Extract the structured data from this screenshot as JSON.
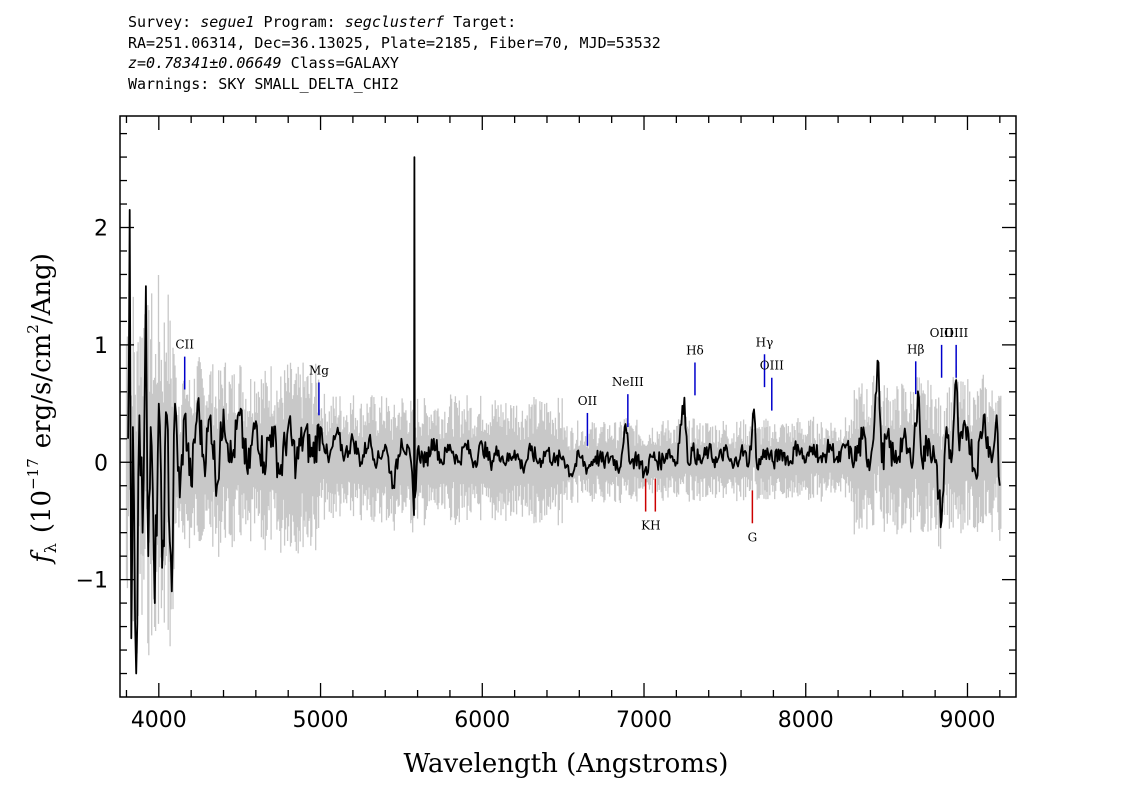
{
  "header": {
    "survey_label": "Survey:",
    "survey": "segue1",
    "program_label": "Program:",
    "program": "segclusterf",
    "target_label": "Target:",
    "line2": "RA=251.06314, Dec=36.13025, Plate=2185, Fiber=70, MJD=53532",
    "redshift": "z=0.78341±0.06649",
    "class_text": "Class=GALAXY",
    "warnings": "Warnings: SKY SMALL_DELTA_CHI2"
  },
  "chart_data": {
    "type": "line",
    "xlabel": "Wavelength (Angstroms)",
    "ylabel_symbol": "f",
    "ylabel_sub": "λ",
    "ylabel_rest": "(10",
    "ylabel_exp": "−17",
    "ylabel_units": "erg/s/cm",
    "ylabel_exp2": "2",
    "ylabel_end": "/Ang)",
    "xlim": [
      3760,
      9300
    ],
    "ylim": [
      -2.0,
      2.95
    ],
    "x_ticks": [
      {
        "value": 4000,
        "label": "4000"
      },
      {
        "value": 5000,
        "label": "5000"
      },
      {
        "value": 6000,
        "label": "6000"
      },
      {
        "value": 7000,
        "label": "7000"
      },
      {
        "value": 8000,
        "label": "8000"
      },
      {
        "value": 9000,
        "label": "9000"
      }
    ],
    "y_ticks": [
      {
        "value": -1,
        "label": "−1"
      },
      {
        "value": 0,
        "label": "0"
      },
      {
        "value": 1,
        "label": "1"
      },
      {
        "value": 2,
        "label": "2"
      }
    ],
    "spectrum_color": "#000000",
    "noise_color": "#c8c8c8",
    "spectrum_points": [
      [
        3810,
        0.2
      ],
      [
        3820,
        2.15
      ],
      [
        3830,
        -1.5
      ],
      [
        3840,
        0.3
      ],
      [
        3860,
        -1.8
      ],
      [
        3880,
        0.4
      ],
      [
        3900,
        -0.6
      ],
      [
        3920,
        1.5
      ],
      [
        3935,
        -0.8
      ],
      [
        3950,
        0.3
      ],
      [
        3975,
        -1.2
      ],
      [
        4000,
        0.5
      ],
      [
        4020,
        -0.9
      ],
      [
        4050,
        0.4
      ],
      [
        4080,
        -1.1
      ],
      [
        4100,
        0.5
      ],
      [
        4130,
        -0.3
      ],
      [
        4160,
        0.4
      ],
      [
        4200,
        -0.2
      ],
      [
        4240,
        0.5
      ],
      [
        4280,
        0.0
      ],
      [
        4320,
        0.4
      ],
      [
        4360,
        -0.2
      ],
      [
        4400,
        0.45
      ],
      [
        4450,
        0.0
      ],
      [
        4500,
        0.4
      ],
      [
        4550,
        -0.1
      ],
      [
        4600,
        0.35
      ],
      [
        4650,
        0.0
      ],
      [
        4700,
        0.3
      ],
      [
        4750,
        -0.1
      ],
      [
        4800,
        0.3
      ],
      [
        4850,
        0.0
      ],
      [
        4900,
        0.25
      ],
      [
        4950,
        0.05
      ],
      [
        5000,
        0.3
      ],
      [
        5050,
        0.0
      ],
      [
        5100,
        0.25
      ],
      [
        5150,
        0.05
      ],
      [
        5200,
        0.2
      ],
      [
        5250,
        0.0
      ],
      [
        5300,
        0.2
      ],
      [
        5350,
        0.0
      ],
      [
        5400,
        0.15
      ],
      [
        5450,
        -0.2
      ],
      [
        5500,
        0.2
      ],
      [
        5560,
        0.0
      ],
      [
        5578,
        -0.45
      ],
      [
        5580,
        2.6
      ],
      [
        5583,
        -0.3
      ],
      [
        5600,
        0.1
      ],
      [
        5650,
        0.0
      ],
      [
        5700,
        0.2
      ],
      [
        5750,
        0.0
      ],
      [
        5800,
        0.15
      ],
      [
        5850,
        0.0
      ],
      [
        5900,
        0.15
      ],
      [
        5950,
        0.0
      ],
      [
        6000,
        0.15
      ],
      [
        6050,
        0.0
      ],
      [
        6100,
        0.1
      ],
      [
        6150,
        0.0
      ],
      [
        6200,
        0.1
      ],
      [
        6250,
        -0.05
      ],
      [
        6300,
        0.1
      ],
      [
        6350,
        0.0
      ],
      [
        6400,
        0.1
      ],
      [
        6450,
        0.0
      ],
      [
        6500,
        0.05
      ],
      [
        6550,
        -0.1
      ],
      [
        6600,
        0.05
      ],
      [
        6650,
        -0.05
      ],
      [
        6700,
        0.05
      ],
      [
        6750,
        0.0
      ],
      [
        6800,
        0.05
      ],
      [
        6850,
        -0.05
      ],
      [
        6880,
        0.3
      ],
      [
        6920,
        0.0
      ],
      [
        6960,
        0.05
      ],
      [
        7000,
        -0.1
      ],
      [
        7050,
        0.05
      ],
      [
        7100,
        0.0
      ],
      [
        7150,
        0.1
      ],
      [
        7200,
        0.0
      ],
      [
        7250,
        0.55
      ],
      [
        7270,
        0.0
      ],
      [
        7300,
        0.1
      ],
      [
        7350,
        0.0
      ],
      [
        7400,
        0.1
      ],
      [
        7450,
        0.0
      ],
      [
        7500,
        0.1
      ],
      [
        7550,
        -0.05
      ],
      [
        7600,
        0.1
      ],
      [
        7650,
        0.0
      ],
      [
        7680,
        0.45
      ],
      [
        7700,
        -0.05
      ],
      [
        7750,
        0.1
      ],
      [
        7800,
        0.0
      ],
      [
        7850,
        0.1
      ],
      [
        7900,
        0.0
      ],
      [
        7950,
        0.15
      ],
      [
        8000,
        0.0
      ],
      [
        8050,
        0.15
      ],
      [
        8100,
        0.0
      ],
      [
        8150,
        0.15
      ],
      [
        8200,
        0.0
      ],
      [
        8250,
        0.15
      ],
      [
        8300,
        0.0
      ],
      [
        8350,
        0.2
      ],
      [
        8400,
        0.0
      ],
      [
        8450,
        0.85
      ],
      [
        8470,
        0.0
      ],
      [
        8500,
        0.2
      ],
      [
        8550,
        0.0
      ],
      [
        8600,
        0.2
      ],
      [
        8650,
        0.0
      ],
      [
        8700,
        0.55
      ],
      [
        8720,
        0.0
      ],
      [
        8760,
        0.2
      ],
      [
        8800,
        0.0
      ],
      [
        8840,
        -0.5
      ],
      [
        8870,
        0.3
      ],
      [
        8900,
        0.0
      ],
      [
        8930,
        0.7
      ],
      [
        8950,
        0.1
      ],
      [
        9000,
        0.3
      ],
      [
        9050,
        -0.1
      ],
      [
        9100,
        0.4
      ],
      [
        9150,
        0.0
      ],
      [
        9180,
        0.4
      ],
      [
        9200,
        -0.2
      ]
    ],
    "emission_lines": [
      {
        "label": "CII",
        "x": 4160,
        "y_top": 0.9,
        "y_bottom": 0.62
      },
      {
        "label": "Mg",
        "x": 4990,
        "y_top": 0.68,
        "y_bottom": 0.4
      },
      {
        "label": "OII",
        "x": 6650,
        "y_top": 0.42,
        "y_bottom": 0.14
      },
      {
        "label": "NeIII",
        "x": 6900,
        "y_top": 0.58,
        "y_bottom": 0.3
      },
      {
        "label": "Hδ",
        "x": 7315,
        "y_top": 0.85,
        "y_bottom": 0.57
      },
      {
        "label": "Hγ",
        "x": 7745,
        "y_top": 0.92,
        "y_bottom": 0.64
      },
      {
        "label": "OIII",
        "x": 7790,
        "y_top": 0.72,
        "y_bottom": 0.44
      },
      {
        "label": "Hβ",
        "x": 8680,
        "y_top": 0.86,
        "y_bottom": 0.58
      },
      {
        "label": "OIII",
        "x": 8840,
        "y_top": 1.0,
        "y_bottom": 0.72
      },
      {
        "label": "OIII",
        "x": 8930,
        "y_top": 1.0,
        "y_bottom": 0.72
      }
    ],
    "absorption_lines": [
      {
        "label": "K",
        "x": 7010,
        "y_top": -0.14,
        "y_bottom": -0.42
      },
      {
        "label": "H",
        "x": 7070,
        "y_top": -0.14,
        "y_bottom": -0.42
      },
      {
        "label": "G",
        "x": 7670,
        "y_top": -0.24,
        "y_bottom": -0.52
      }
    ],
    "emission_color": "#0000cc",
    "absorption_color": "#cc0000"
  }
}
